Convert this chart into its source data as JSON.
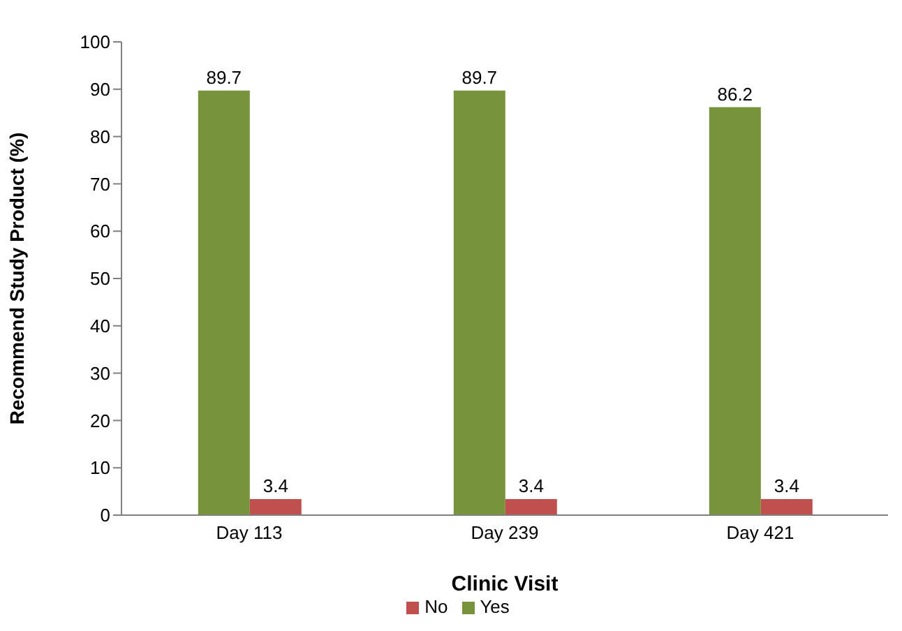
{
  "chart_data": {
    "type": "bar",
    "xlabel": "Clinic Visit",
    "ylabel": "Recommend Study Product (%)",
    "categories": [
      "Day 113",
      "Day 239",
      "Day 421"
    ],
    "series": [
      {
        "name": "Yes",
        "color": "#77933c",
        "values": [
          89.7,
          89.7,
          86.2
        ]
      },
      {
        "name": "No",
        "color": "#c0504d",
        "values": [
          3.4,
          3.4,
          3.4
        ]
      }
    ],
    "ylim": [
      0,
      100
    ],
    "yticks": [
      0,
      10,
      20,
      30,
      40,
      50,
      60,
      70,
      80,
      90,
      100
    ],
    "grid": false,
    "legend": "bottom",
    "data_labels": true
  }
}
